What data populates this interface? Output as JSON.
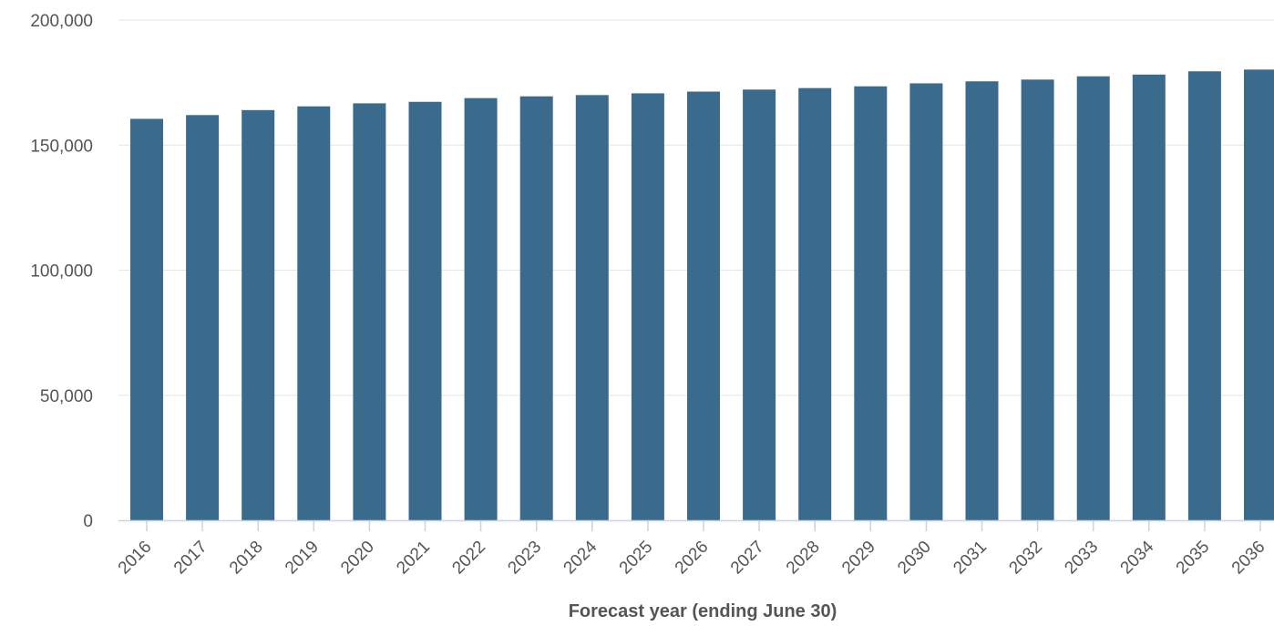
{
  "chart_data": {
    "type": "bar",
    "title": "",
    "xlabel": "Forecast year (ending June 30)",
    "ylabel": "",
    "ylim": [
      0,
      200000
    ],
    "yticks": [
      0,
      50000,
      100000,
      150000,
      200000
    ],
    "ytick_labels": [
      "0",
      "50,000",
      "100,000",
      "150,000",
      "200,000"
    ],
    "grid": true,
    "bar_color": "#3b6b8c",
    "categories": [
      "2016",
      "2017",
      "2018",
      "2019",
      "2020",
      "2021",
      "2022",
      "2023",
      "2024",
      "2025",
      "2026",
      "2027",
      "2028",
      "2029",
      "2030",
      "2031",
      "2032",
      "2033",
      "2034",
      "2035",
      "2036"
    ],
    "values": [
      160500,
      162000,
      164000,
      165500,
      166700,
      167300,
      168800,
      169500,
      170000,
      170700,
      171400,
      172200,
      172800,
      173500,
      174700,
      175500,
      176200,
      177500,
      178200,
      179500,
      180200
    ]
  }
}
